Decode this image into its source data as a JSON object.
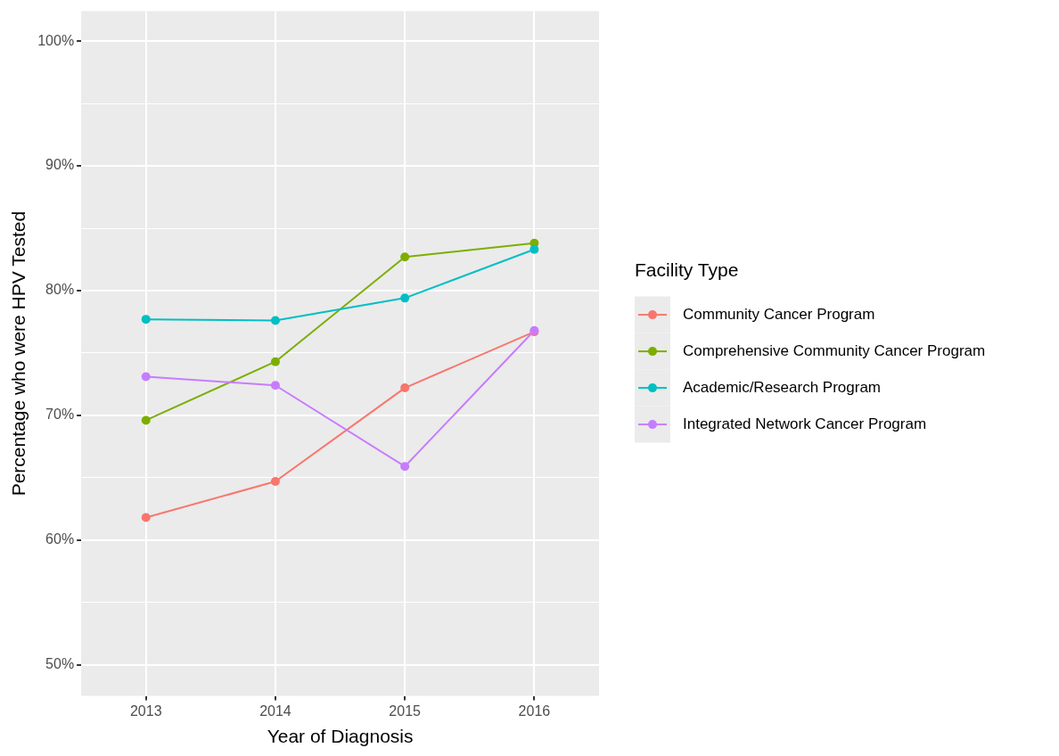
{
  "chart_data": {
    "type": "line",
    "xlabel": "Year of Diagnosis",
    "ylabel": "Percentage who were HPV Tested",
    "legend_title": "Facility Type",
    "legend": "right",
    "grid": true,
    "marker": "circle",
    "line_style": "solid",
    "categories": [
      "2013",
      "2014",
      "2015",
      "2016"
    ],
    "ylim": [
      47.5,
      102.4
    ],
    "yticks": [
      {
        "value": 50,
        "label": "50%"
      },
      {
        "value": 55,
        "label": null
      },
      {
        "value": 60,
        "label": "60%"
      },
      {
        "value": 65,
        "label": null
      },
      {
        "value": 70,
        "label": "70%"
      },
      {
        "value": 75,
        "label": null
      },
      {
        "value": 80,
        "label": "80%"
      },
      {
        "value": 85,
        "label": null
      },
      {
        "value": 90,
        "label": "90%"
      },
      {
        "value": 95,
        "label": null
      },
      {
        "value": 100,
        "label": "100%"
      }
    ],
    "series": [
      {
        "name": "Community Cancer Program",
        "color": "#f8766d",
        "values": [
          61.8,
          64.7,
          72.2,
          76.7
        ]
      },
      {
        "name": "Comprehensive Community Cancer Program",
        "color": "#7cae00",
        "values": [
          69.6,
          74.3,
          82.7,
          83.8
        ]
      },
      {
        "name": "Academic/Research Program",
        "color": "#00bfc4",
        "values": [
          77.7,
          77.6,
          79.4,
          83.3
        ]
      },
      {
        "name": "Integrated Network Cancer Program",
        "color": "#c77cff",
        "values": [
          73.1,
          72.4,
          65.9,
          76.8
        ]
      }
    ]
  }
}
